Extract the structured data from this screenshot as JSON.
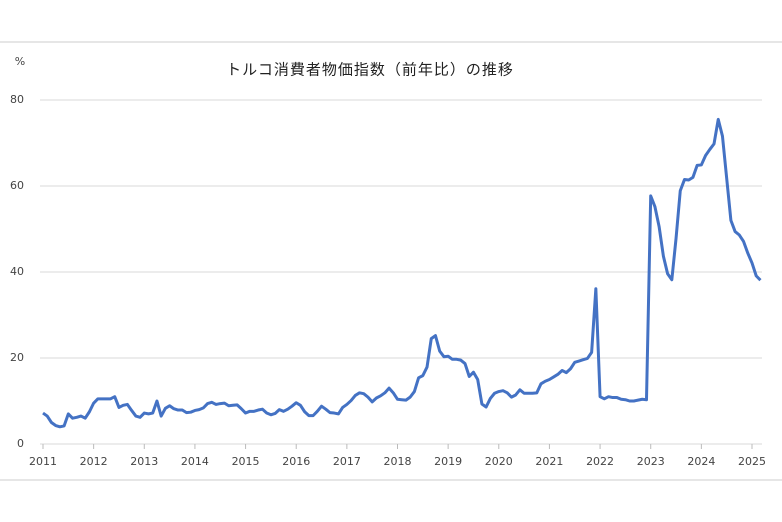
{
  "chart_data": {
    "type": "line",
    "title": "トルコ消費者物価指数（前年比）の推移",
    "y_label": "%",
    "categories": [
      "2011",
      null,
      null,
      null,
      null,
      null,
      null,
      null,
      null,
      null,
      null,
      null,
      "2012",
      null,
      null,
      null,
      null,
      null,
      null,
      null,
      null,
      null,
      null,
      null,
      "2013",
      null,
      null,
      null,
      null,
      null,
      null,
      null,
      null,
      null,
      null,
      null,
      "2014",
      null,
      null,
      null,
      null,
      null,
      null,
      null,
      null,
      null,
      null,
      null,
      "2015",
      null,
      null,
      null,
      null,
      null,
      null,
      null,
      null,
      null,
      null,
      null,
      "2016",
      null,
      null,
      null,
      null,
      null,
      null,
      null,
      null,
      null,
      null,
      null,
      "2017",
      null,
      null,
      null,
      null,
      null,
      null,
      null,
      null,
      null,
      null,
      null,
      "2018",
      null,
      null,
      null,
      null,
      null,
      null,
      null,
      null,
      null,
      null,
      null,
      "2019",
      null,
      null,
      null,
      null,
      null,
      null,
      null,
      null,
      null,
      null,
      null,
      "2020",
      null,
      null,
      null,
      null,
      null,
      null,
      null,
      null,
      null,
      null,
      null,
      "2021",
      null,
      null,
      null,
      null,
      null,
      null,
      null,
      null,
      null,
      null,
      null,
      "2022",
      null,
      null,
      null,
      null,
      null,
      null,
      null,
      null,
      null,
      null,
      null,
      "2023",
      null,
      null,
      null,
      null,
      null,
      null,
      null,
      null,
      null,
      null,
      null,
      "2024",
      null,
      null,
      null,
      null,
      null,
      null,
      null,
      null,
      null,
      null,
      null,
      "2025",
      null,
      null
    ],
    "values": [
      7.2,
      6.5,
      5.0,
      4.3,
      4.0,
      4.2,
      7.0,
      6.0,
      6.2,
      6.5,
      6.0,
      7.5,
      9.5,
      10.5,
      10.5,
      10.5,
      10.5,
      11.0,
      8.5,
      9.0,
      9.2,
      7.8,
      6.5,
      6.2,
      7.2,
      7.0,
      7.2,
      10.0,
      6.5,
      8.3,
      8.9,
      8.2,
      7.9,
      7.9,
      7.3,
      7.4,
      7.8,
      8.0,
      8.4,
      9.4,
      9.7,
      9.2,
      9.4,
      9.5,
      8.9,
      9.0,
      9.1,
      8.2,
      7.2,
      7.6,
      7.6,
      7.9,
      8.1,
      7.2,
      6.8,
      7.1,
      8.0,
      7.6,
      8.1,
      8.8,
      9.6,
      9.0,
      7.5,
      6.6,
      6.6,
      7.6,
      8.8,
      8.1,
      7.3,
      7.2,
      7.0,
      8.5,
      9.2,
      10.1,
      11.3,
      11.9,
      11.7,
      10.9,
      9.8,
      10.7,
      11.2,
      11.9,
      13.0,
      11.9,
      10.4,
      10.3,
      10.2,
      10.9,
      12.2,
      15.4,
      15.9,
      17.9,
      24.5,
      25.2,
      21.6,
      20.3,
      20.4,
      19.7,
      19.7,
      19.5,
      18.7,
      15.7,
      16.7,
      15.0,
      9.3,
      8.6,
      10.6,
      11.8,
      12.2,
      12.4,
      11.9,
      10.9,
      11.4,
      12.6,
      11.8,
      11.8,
      11.8,
      11.9,
      14.0,
      14.6,
      15.0,
      15.6,
      16.2,
      17.1,
      16.6,
      17.5,
      19.0,
      19.3,
      19.6,
      19.9,
      21.3,
      36.1,
      11.0,
      10.5,
      11.0,
      10.8,
      10.8,
      10.4,
      10.3,
      10.0,
      10.0,
      10.2,
      10.4,
      10.3,
      57.7,
      55.2,
      50.5,
      43.7,
      39.6,
      38.2,
      47.8,
      58.9,
      61.5,
      61.4,
      62.0,
      64.8,
      64.9,
      67.1,
      68.5,
      69.8,
      75.5,
      71.6,
      61.8,
      52.0,
      49.4,
      48.6,
      47.1,
      44.4,
      42.1,
      39.1,
      38.1
    ],
    "color": "#4472c4",
    "ylim": [
      0,
      80
    ],
    "yticks": [
      0,
      20,
      40,
      60,
      80
    ],
    "grid": true
  }
}
